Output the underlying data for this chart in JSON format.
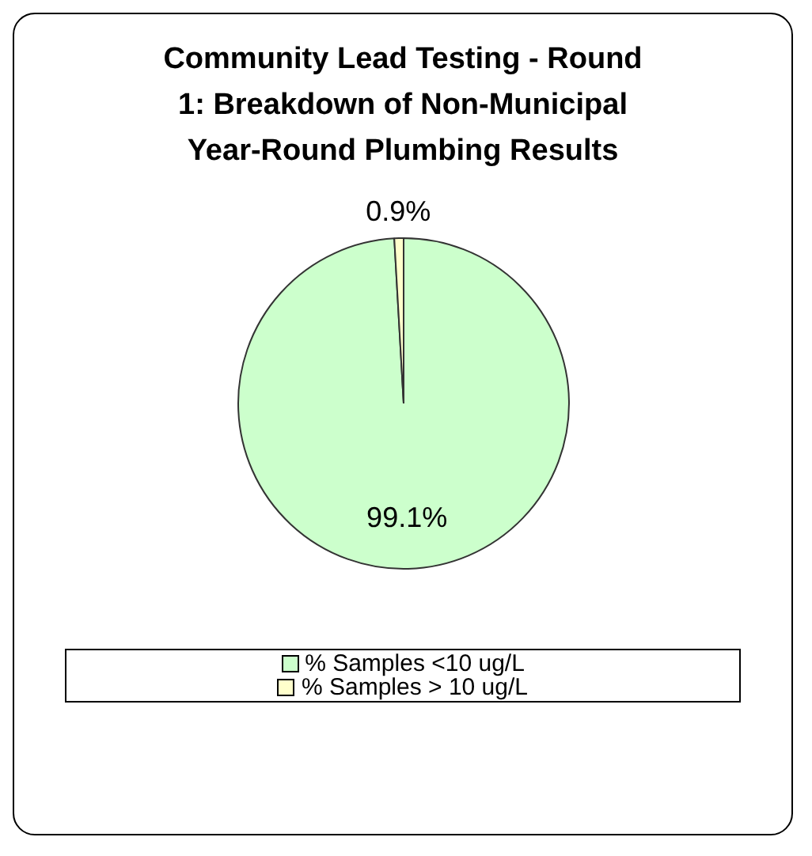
{
  "chart_data": {
    "type": "pie",
    "title": "Community Lead Testing - Round 1: Breakdown of Non-Municipal Year-Round Plumbing Results",
    "categories": [
      "% Samples <10 ug/L",
      "% Samples > 10 ug/L"
    ],
    "values": [
      99.1,
      0.9
    ],
    "value_labels": [
      "99.1%",
      "0.9%"
    ],
    "colors": [
      "#ccffcc",
      "#ffffcc"
    ],
    "legend": "bottom"
  }
}
